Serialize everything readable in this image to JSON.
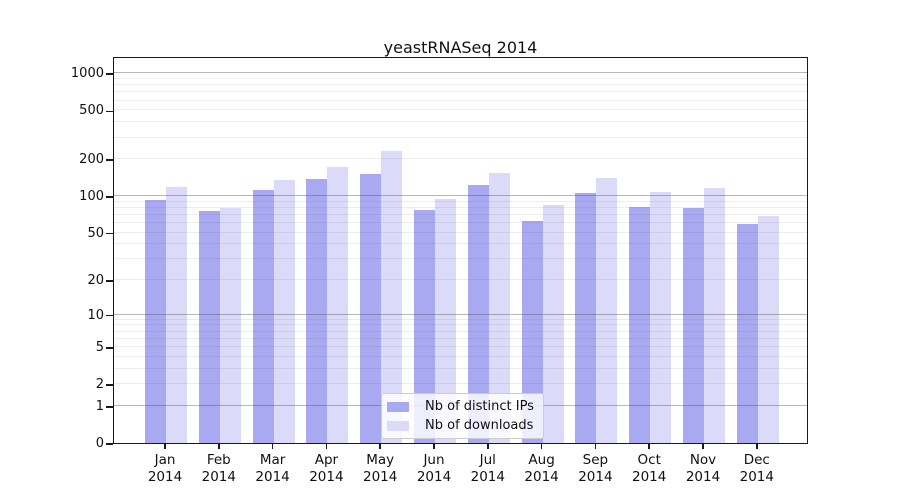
{
  "chart_data": {
    "type": "bar",
    "title": "yeastRNASeq 2014",
    "categories": [
      "Jan 2014",
      "Feb 2014",
      "Mar 2014",
      "Apr 2014",
      "May 2014",
      "Jun 2014",
      "Jul 2014",
      "Aug 2014",
      "Sep 2014",
      "Oct 2014",
      "Nov 2014",
      "Dec 2014"
    ],
    "series": [
      {
        "name": "Nb of distinct IPs",
        "color": "#a9a9f2",
        "values": [
          93,
          76,
          112,
          137,
          151,
          77,
          122,
          62,
          106,
          82,
          79,
          59
        ]
      },
      {
        "name": "Nb of downloads",
        "color": "#dbdbf9",
        "values": [
          118,
          80,
          135,
          174,
          235,
          95,
          155,
          85,
          141,
          108,
          116,
          68
        ]
      }
    ],
    "yticks": [
      0,
      1,
      2,
      5,
      10,
      20,
      50,
      100,
      200,
      500,
      1000
    ],
    "scale": "log10(1+v)",
    "ylim": [
      0,
      1380
    ],
    "xlabel": "",
    "ylabel": "",
    "grid": true,
    "legend_position": "bottom-center",
    "colors": {
      "spine": "#1a1a1a",
      "major_grid": "rgba(80,80,80,0.42)",
      "minor_grid": "rgba(80,80,80,0.10)",
      "background": "#ffffff"
    }
  }
}
